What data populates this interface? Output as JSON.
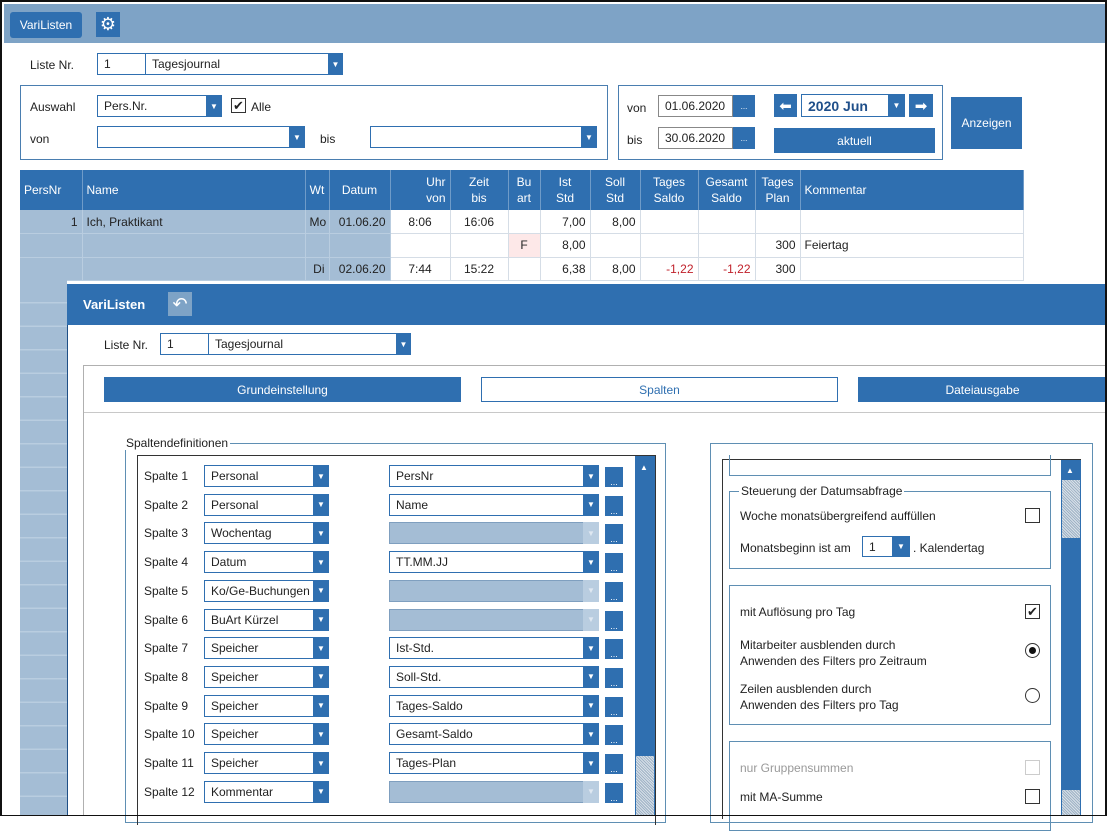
{
  "app": {
    "title": "VariListen",
    "gear_icon": "gear-icon"
  },
  "liste": {
    "label": "Liste Nr.",
    "nr": "1",
    "name": "Tagesjournal"
  },
  "auswahl": {
    "label": "Auswahl",
    "value": "Pers.Nr.",
    "alle_label": "Alle",
    "alle_checked": true,
    "von_label": "von",
    "bis_label": "bis",
    "von_value": "",
    "bis_value": ""
  },
  "datum": {
    "von_label": "von",
    "von": "01.06.2020",
    "bis_label": "bis",
    "bis": "30.06.2020",
    "dots": "...",
    "month": "2020 Jun",
    "aktuell": "aktuell"
  },
  "anzeigen": "Anzeigen",
  "table": {
    "headers": [
      [
        "PersNr",
        ""
      ],
      [
        "Name",
        ""
      ],
      [
        "Wt",
        ""
      ],
      [
        "Datum",
        ""
      ],
      [
        "Uhr",
        "von"
      ],
      [
        "Zeit",
        "bis"
      ],
      [
        "Bu",
        "art"
      ],
      [
        "Ist",
        "Std"
      ],
      [
        "Soll",
        "Std"
      ],
      [
        "Tages",
        "Saldo"
      ],
      [
        "Gesamt",
        "Saldo"
      ],
      [
        "Tages",
        "Plan"
      ],
      [
        "Kommentar",
        ""
      ]
    ],
    "rows": [
      [
        "1",
        "Ich, Praktikant",
        "Mo",
        "01.06.20",
        "8:06",
        "16:06",
        "",
        "7,00",
        "8,00",
        "",
        "",
        "",
        ""
      ],
      [
        "",
        "",
        "",
        "",
        "",
        "",
        "F",
        "8,00",
        "",
        "",
        "",
        "300",
        "Feiertag"
      ],
      [
        "",
        "",
        "Di",
        "02.06.20",
        "7:44",
        "15:22",
        "",
        "6,38",
        "8,00",
        "-1,22",
        "-1,22",
        "300",
        ""
      ]
    ]
  },
  "dialog": {
    "title": "VariListen",
    "back_icon": "undo-icon",
    "liste": {
      "label": "Liste Nr.",
      "nr": "1",
      "name": "Tagesjournal"
    },
    "tabs": [
      {
        "label": "Grundeinstellung",
        "active": false
      },
      {
        "label": "Spalten",
        "active": true
      },
      {
        "label": "Dateiausgabe",
        "active": false
      }
    ],
    "spalten_title": "Spaltendefinitionen",
    "spalten": [
      {
        "label": "Spalte 1",
        "typ": "Personal",
        "feld": "PersNr",
        "enabled": true
      },
      {
        "label": "Spalte 2",
        "typ": "Personal",
        "feld": "Name",
        "enabled": true
      },
      {
        "label": "Spalte 3",
        "typ": "Wochentag",
        "feld": "",
        "enabled": false
      },
      {
        "label": "Spalte 4",
        "typ": "Datum",
        "feld": "TT.MM.JJ",
        "enabled": true
      },
      {
        "label": "Spalte 5",
        "typ": "Ko/Ge-Buchungen",
        "feld": "",
        "enabled": false
      },
      {
        "label": "Spalte 6",
        "typ": "BuArt Kürzel",
        "feld": "",
        "enabled": false
      },
      {
        "label": "Spalte 7",
        "typ": "Speicher",
        "feld": "Ist-Std.",
        "enabled": true
      },
      {
        "label": "Spalte 8",
        "typ": "Speicher",
        "feld": "Soll-Std.",
        "enabled": true
      },
      {
        "label": "Spalte 9",
        "typ": "Speicher",
        "feld": "Tages-Saldo",
        "enabled": true
      },
      {
        "label": "Spalte 10",
        "typ": "Speicher",
        "feld": "Gesamt-Saldo",
        "enabled": true
      },
      {
        "label": "Spalte 11",
        "typ": "Speicher",
        "feld": "Tages-Plan",
        "enabled": true
      },
      {
        "label": "Spalte 12",
        "typ": "Kommentar",
        "feld": "",
        "enabled": false
      }
    ],
    "dots": "...",
    "steuerung": {
      "title": "Steuerung der Datumsabfrage",
      "woche_label": "Woche monatsübergreifend auffüllen",
      "woche_checked": false,
      "monatsbeginn_label": "Monatsbeginn ist am",
      "monatsbeginn_value": "1",
      "kalendertag_label": ". Kalendertag"
    },
    "optionen": {
      "aufloesung_label": "mit Auflösung pro Tag",
      "aufloesung_checked": true,
      "ma_ausblenden_1": "Mitarbeiter ausblenden durch",
      "ma_ausblenden_2": "Anwenden des Filters pro Zeitraum",
      "ma_selected": true,
      "zeilen_1": "Zeilen ausblenden durch",
      "zeilen_2": "Anwenden des Filters pro Tag",
      "zeilen_selected": false
    },
    "summen": {
      "gruppen_label": "nur Gruppensummen",
      "gruppen_enabled": false,
      "ma_summe_label": "mit MA-Summe",
      "ma_summe_checked": false
    }
  },
  "colors": {
    "accent": "#2f6fb0",
    "topbar": "#7ea3c6",
    "disabled": "#a4bdd5",
    "negative": "#c0202a"
  }
}
